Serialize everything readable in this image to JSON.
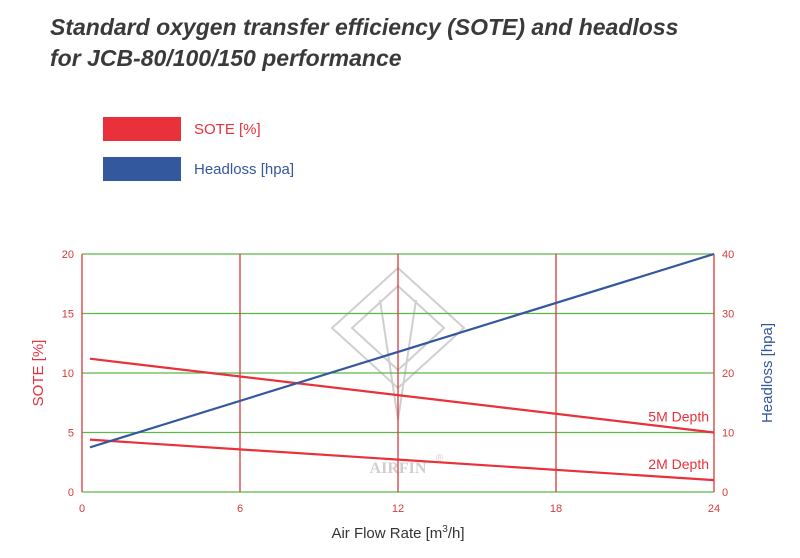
{
  "title_lines": [
    "Standard oxygen transfer efficiency (SOTE) and headloss",
    "for JCB-80/100/150 performance"
  ],
  "colors": {
    "sote": "#e8313b",
    "headloss": "#34589d",
    "grid_h": "#5cb84a",
    "grid_v": "#d93a3a",
    "tick_text": "#d43a3a",
    "axis_text": "#333333",
    "watermark": "#cfcfcf"
  },
  "watermark": {
    "text": "AIRFIN",
    "mark": "®"
  },
  "chart_data": {
    "type": "line",
    "xlabel": "Air Flow Rate [m³/h]",
    "xlabel_main": "Air Flow Rate [m",
    "xlabel_sup": "3",
    "xlabel_tail": "/h]",
    "ylabel": "SOTE [%]",
    "y2label": "Headloss [hpa]",
    "xlim": [
      0,
      24
    ],
    "ylim": [
      0,
      20
    ],
    "y2lim": [
      0,
      40
    ],
    "xticks": [
      "0",
      "6",
      "12",
      "18",
      "24"
    ],
    "yticks": [
      "0",
      "5",
      "10",
      "15",
      "20"
    ],
    "y2ticks": [
      "0",
      "10",
      "20",
      "30",
      "40"
    ],
    "grid": true,
    "legend": {
      "position": "top-left"
    },
    "series": [
      {
        "name": "SOTE [%]",
        "axis": "left",
        "label": "5M Depth",
        "x": [
          0.3,
          24
        ],
        "y": [
          11.2,
          5.0
        ]
      },
      {
        "name": "SOTE [%]",
        "axis": "left",
        "label": "2M Depth",
        "x": [
          0.3,
          24
        ],
        "y": [
          4.4,
          1.0
        ]
      },
      {
        "name": "Headloss [hpa]",
        "axis": "right",
        "label": "",
        "x": [
          0.3,
          24
        ],
        "y": [
          7.5,
          40.0
        ]
      }
    ],
    "legend_entries": [
      {
        "label": "SOTE [%]",
        "color": "#e8313b"
      },
      {
        "label": "Headloss [hpa]",
        "color": "#34589d"
      }
    ]
  }
}
